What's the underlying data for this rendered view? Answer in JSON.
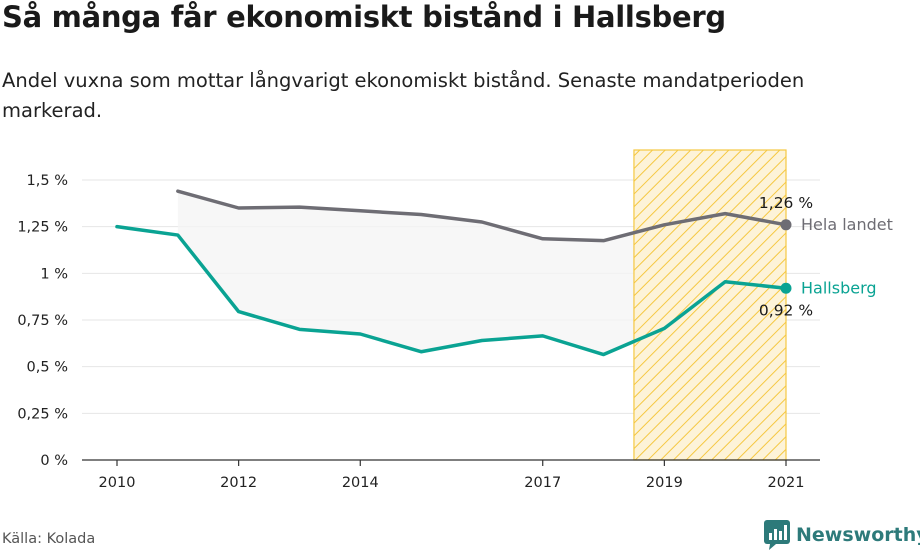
{
  "title": "Så många får ekonomiskt bistånd i Hallsberg",
  "subtitle": "Andel vuxna som mottar långvarigt ekonomiskt bistånd. Senaste mandatperioden markerad.",
  "source": "Källa: Kolada",
  "brand": "Newsworthy",
  "colors": {
    "hallsberg": "#0aa393",
    "hela_landet": "#6e6d74",
    "highlight": "#f5c842",
    "band_fill": "#f4f4f4",
    "grid": "#e6e6e6"
  },
  "chart_data": {
    "type": "line",
    "title": "Så många får ekonomiskt bistånd i Hallsberg",
    "ylim": [
      0,
      1.5
    ],
    "xlim": [
      2009.7,
      2021.5
    ],
    "y_ticks": [
      {
        "value": 0,
        "label": "0 %"
      },
      {
        "value": 0.25,
        "label": "0,25 %"
      },
      {
        "value": 0.5,
        "label": "0,5 %"
      },
      {
        "value": 0.75,
        "label": "0,75 %"
      },
      {
        "value": 1,
        "label": "1 %"
      },
      {
        "value": 1.25,
        "label": "1,25 %"
      },
      {
        "value": 1.5,
        "label": "1,5 %"
      }
    ],
    "x_ticks": [
      {
        "value": 2010,
        "label": "2010"
      },
      {
        "value": 2012,
        "label": "2012"
      },
      {
        "value": 2014,
        "label": "2014"
      },
      {
        "value": 2017,
        "label": "2017"
      },
      {
        "value": 2019,
        "label": "2019"
      },
      {
        "value": 2021,
        "label": "2021"
      }
    ],
    "highlight_period": [
      2018.5,
      2021
    ],
    "series": [
      {
        "name": "Hela landet",
        "end_value_label": "1,26 %",
        "x": [
          2011,
          2012,
          2013,
          2014,
          2015,
          2016,
          2017,
          2018,
          2019,
          2020,
          2021
        ],
        "values": [
          1.44,
          1.35,
          1.355,
          1.335,
          1.315,
          1.275,
          1.185,
          1.175,
          1.26,
          1.32,
          1.26
        ]
      },
      {
        "name": "Hallsberg",
        "end_value_label": "0,92 %",
        "x": [
          2010,
          2011,
          2012,
          2013,
          2014,
          2015,
          2016,
          2017,
          2018,
          2019,
          2020,
          2021
        ],
        "values": [
          1.25,
          1.205,
          0.795,
          0.7,
          0.675,
          0.58,
          0.64,
          0.665,
          0.565,
          0.705,
          0.955,
          0.92
        ]
      }
    ]
  }
}
